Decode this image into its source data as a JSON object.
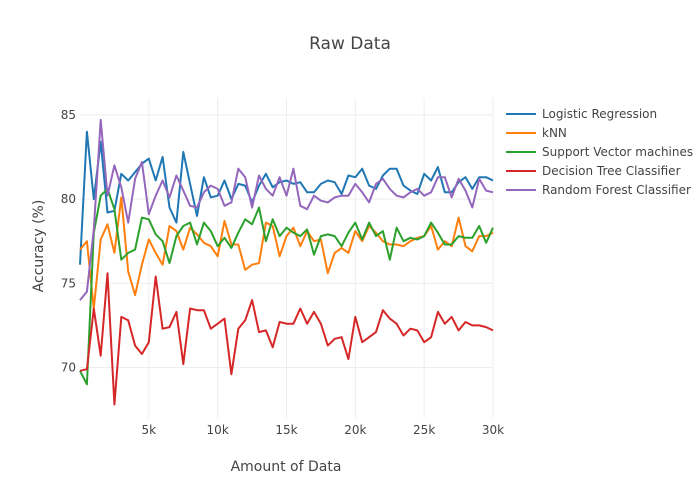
{
  "chart_data": {
    "type": "line",
    "title": "Raw Data",
    "xlabel": "Amount of Data",
    "ylabel": "Accuracy (%)",
    "xlim": [
      0,
      30000
    ],
    "ylim": [
      67,
      86
    ],
    "x_ticks": [
      5000,
      10000,
      15000,
      20000,
      25000,
      30000
    ],
    "x_tick_labels": [
      "5k",
      "10k",
      "15k",
      "20k",
      "25k",
      "30k"
    ],
    "y_ticks": [
      70,
      75,
      80,
      85
    ],
    "y_tick_labels": [
      "70",
      "75",
      "80",
      "85"
    ],
    "grid": true,
    "legend_position": "right",
    "x": [
      0,
      500,
      1000,
      1500,
      2000,
      2500,
      3000,
      3500,
      4000,
      4500,
      5000,
      5500,
      6000,
      6500,
      7000,
      7500,
      8000,
      8500,
      9000,
      9500,
      10000,
      10500,
      11000,
      11500,
      12000,
      12500,
      13000,
      13500,
      14000,
      14500,
      15000,
      15500,
      16000,
      16500,
      17000,
      17500,
      18000,
      18500,
      19000,
      19500,
      20000,
      20500,
      21000,
      21500,
      22000,
      22500,
      23000,
      23500,
      24000,
      24500,
      25000,
      25500,
      26000,
      26500,
      27000,
      27500,
      28000,
      28500,
      29000,
      29500,
      30000
    ],
    "series": [
      {
        "name": "Logistic Regression",
        "color": "#1f77b4",
        "values": [
          76.1,
          84.0,
          80.0,
          83.4,
          79.2,
          79.3,
          81.5,
          81.1,
          81.6,
          82.1,
          82.4,
          81.1,
          82.5,
          79.5,
          78.6,
          82.8,
          80.9,
          79.0,
          81.3,
          80.1,
          80.2,
          81.1,
          80.0,
          80.9,
          80.8,
          79.8,
          80.8,
          81.5,
          80.7,
          81.0,
          81.1,
          80.9,
          81.0,
          80.4,
          80.4,
          80.9,
          81.1,
          81.0,
          80.3,
          81.4,
          81.3,
          81.8,
          80.8,
          80.6,
          81.4,
          81.8,
          81.8,
          80.8,
          80.5,
          80.3,
          81.5,
          81.1,
          81.9,
          80.4,
          80.4,
          81.0,
          81.3,
          80.6,
          81.3,
          81.3,
          81.1
        ]
      },
      {
        "name": "kNN",
        "color": "#ff7f0e",
        "values": [
          77.0,
          77.5,
          73.5,
          77.6,
          78.5,
          76.8,
          80.1,
          75.7,
          74.3,
          76.1,
          77.6,
          76.8,
          76.1,
          78.4,
          78.1,
          77.0,
          78.3,
          77.9,
          77.4,
          77.2,
          76.6,
          78.7,
          77.3,
          77.3,
          75.8,
          76.1,
          76.2,
          78.6,
          78.4,
          76.6,
          77.8,
          78.3,
          77.2,
          78.1,
          77.5,
          77.6,
          75.6,
          76.8,
          77.1,
          76.8,
          78.1,
          77.5,
          78.4,
          78.0,
          77.5,
          77.3,
          77.3,
          77.2,
          77.5,
          77.7,
          77.8,
          78.4,
          77.0,
          77.5,
          77.2,
          78.9,
          77.2,
          76.9,
          77.8,
          77.8,
          78.0
        ]
      },
      {
        "name": "Support Vector machines",
        "color": "#2ca02c",
        "values": [
          69.8,
          69.0,
          78.0,
          80.2,
          80.6,
          79.4,
          76.4,
          76.8,
          77.0,
          78.9,
          78.8,
          77.9,
          77.5,
          76.2,
          77.8,
          78.4,
          78.6,
          77.3,
          78.6,
          78.1,
          77.2,
          77.7,
          77.1,
          78.0,
          78.8,
          78.5,
          79.5,
          77.5,
          78.8,
          77.8,
          78.3,
          78.0,
          77.8,
          78.2,
          76.7,
          77.8,
          77.9,
          77.8,
          77.2,
          78.0,
          78.6,
          77.6,
          78.6,
          77.8,
          78.1,
          76.4,
          78.3,
          77.5,
          77.7,
          77.6,
          77.8,
          78.6,
          78.0,
          77.3,
          77.3,
          77.8,
          77.7,
          77.7,
          78.4,
          77.4,
          78.3
        ]
      },
      {
        "name": "Decision Tree Classifier",
        "color": "#d62728",
        "values": [
          69.8,
          69.9,
          73.5,
          70.7,
          75.6,
          67.8,
          73.0,
          72.8,
          71.3,
          70.8,
          71.5,
          75.4,
          72.3,
          72.4,
          73.3,
          70.2,
          73.5,
          73.4,
          73.4,
          72.3,
          72.6,
          72.9,
          69.6,
          72.3,
          72.8,
          74.0,
          72.1,
          72.2,
          71.2,
          72.7,
          72.6,
          72.6,
          73.5,
          72.6,
          73.3,
          72.6,
          71.3,
          71.7,
          71.8,
          70.5,
          73.0,
          71.5,
          71.8,
          72.1,
          73.4,
          72.9,
          72.6,
          71.9,
          72.3,
          72.2,
          71.5,
          71.8,
          73.3,
          72.6,
          73.0,
          72.2,
          72.7,
          72.5,
          72.5,
          72.4,
          72.2
        ]
      },
      {
        "name": "Random Forest Classifier",
        "color": "#9467bd",
        "values": [
          74.0,
          74.5,
          78.2,
          84.7,
          80.2,
          82.0,
          80.7,
          78.6,
          81.2,
          82.2,
          79.1,
          80.2,
          81.1,
          80.1,
          81.4,
          80.5,
          79.6,
          79.5,
          80.4,
          80.8,
          80.6,
          79.6,
          79.8,
          81.8,
          81.3,
          79.5,
          81.4,
          80.6,
          80.2,
          81.3,
          80.2,
          81.8,
          79.6,
          79.4,
          80.2,
          79.9,
          79.8,
          80.1,
          80.2,
          80.2,
          80.9,
          80.4,
          79.8,
          80.9,
          81.2,
          80.6,
          80.2,
          80.1,
          80.4,
          80.6,
          80.2,
          80.4,
          81.3,
          81.3,
          80.1,
          81.2,
          80.5,
          79.5,
          81.2,
          80.5,
          80.4
        ]
      }
    ]
  }
}
